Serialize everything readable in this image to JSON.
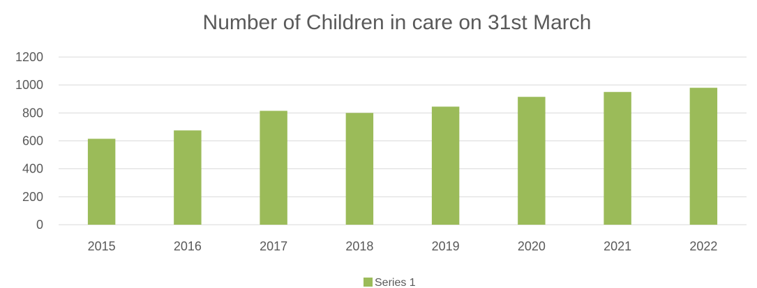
{
  "chart_data": {
    "type": "bar",
    "title": "Number of Children in care on 31st March",
    "categories": [
      "2015",
      "2016",
      "2017",
      "2018",
      "2019",
      "2020",
      "2021",
      "2022"
    ],
    "series": [
      {
        "name": "Series 1",
        "values": [
          615,
          675,
          815,
          800,
          845,
          915,
          950,
          980
        ],
        "color": "#9bbb59"
      }
    ],
    "yticks": [
      "0",
      "200",
      "400",
      "600",
      "800",
      "1000",
      "1200"
    ],
    "ylim": [
      0,
      1200
    ],
    "xlabel": "",
    "ylabel": "",
    "grid": true,
    "legend_position": "bottom-center",
    "gridline_color": "#d9d9d9",
    "text_color": "#595959"
  }
}
